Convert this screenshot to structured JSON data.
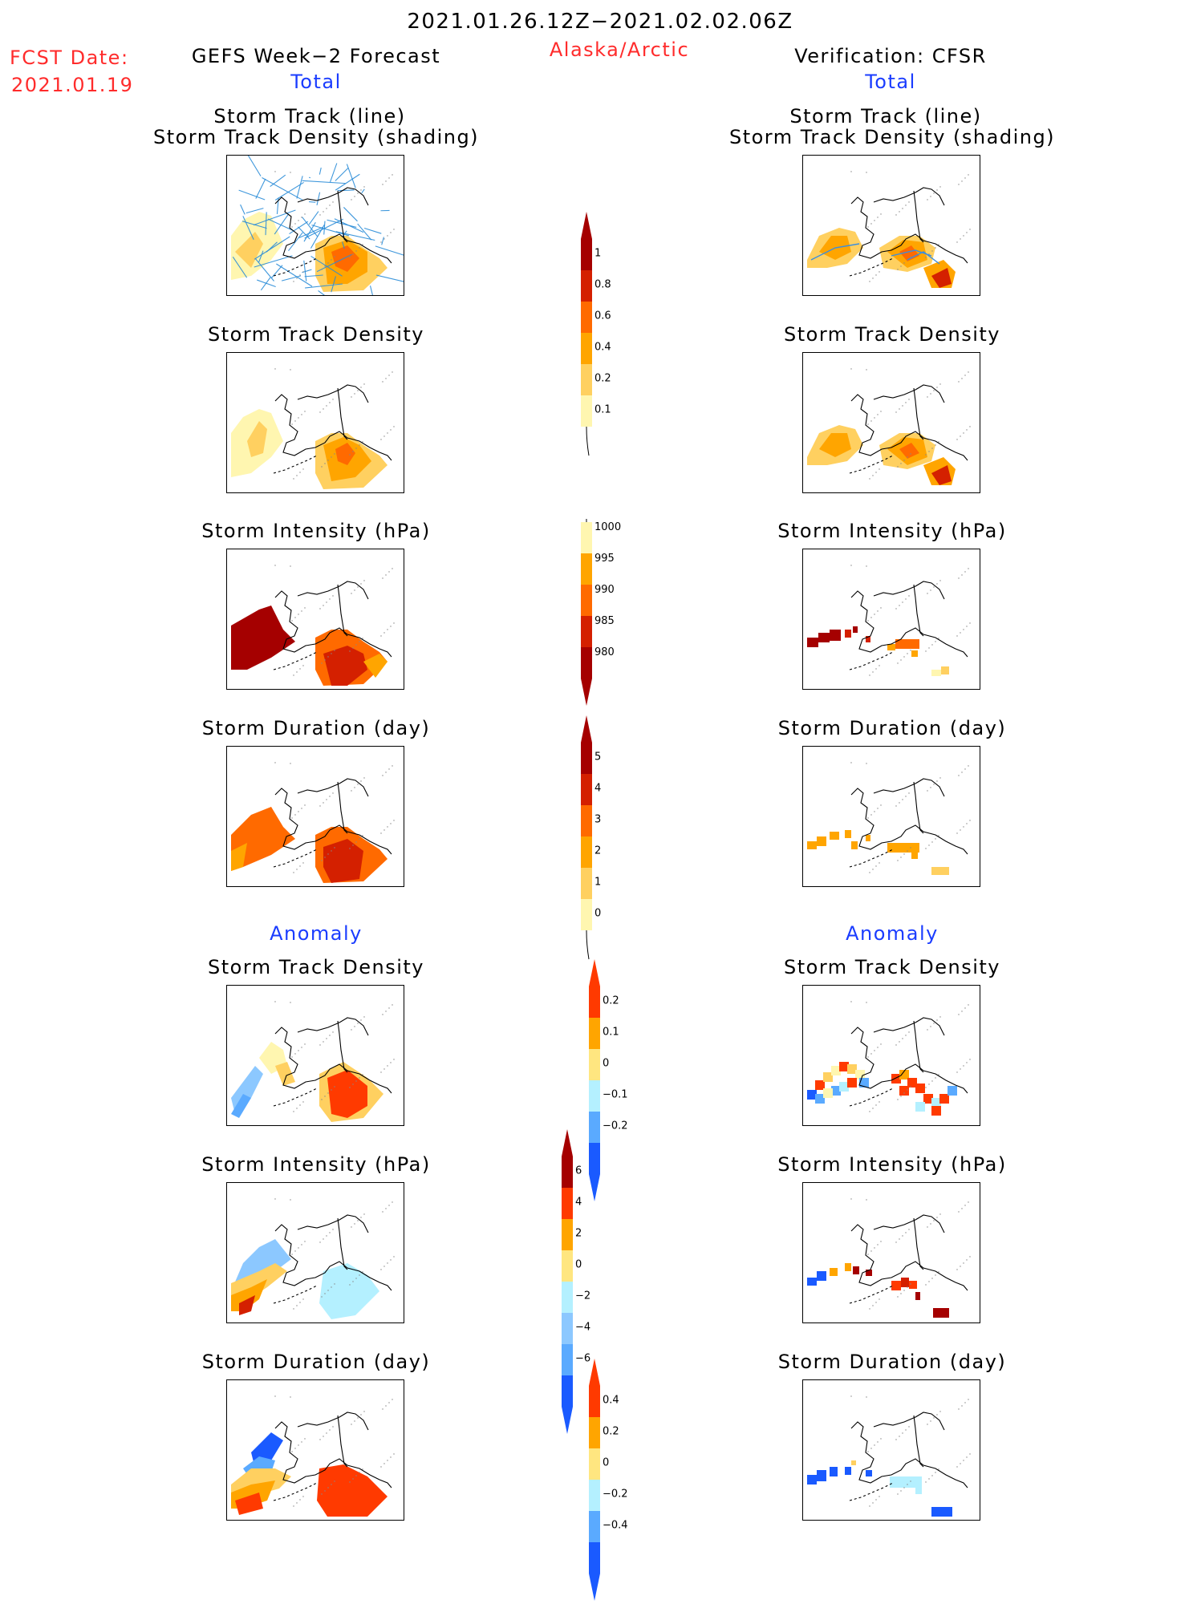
{
  "header": {
    "date_range": "2021.01.26.12Z−2021.02.02.06Z",
    "region": "Alaska/Arctic",
    "fcst_label": "FCST Date:",
    "fcst_date": "2021.01.19",
    "left_title": "GEFS Week−2 Forecast",
    "right_title": "Verification: CFSR",
    "total_label": "Total",
    "anomaly_label": "Anomaly"
  },
  "panel_titles": {
    "track_line": "Storm Track (line)",
    "track_density_shading": "Storm Track Density (shading)",
    "track_density": "Storm Track Density",
    "intensity": "Storm Intensity (hPa)",
    "duration": "Storm Duration (day)"
  },
  "colorbars": [
    {
      "name": "density-total",
      "labels": [
        "1",
        "0.8",
        "0.6",
        "0.4",
        "0.2",
        "0.1"
      ],
      "colors": [
        "#a50000",
        "#d42000",
        "#ff6a00",
        "#ffa500",
        "#ffd060",
        "#fff6b0"
      ]
    },
    {
      "name": "intensity-total",
      "labels": [
        "1000",
        "995",
        "990",
        "985",
        "980"
      ],
      "colors": [
        "#fff6b0",
        "#ffa500",
        "#ff6a00",
        "#d42000",
        "#a50000"
      ]
    },
    {
      "name": "duration-total",
      "labels": [
        "5",
        "4",
        "3",
        "2",
        "1",
        "0"
      ],
      "colors": [
        "#a50000",
        "#d42000",
        "#ff6a00",
        "#ffa500",
        "#ffd060",
        "#fff6b0"
      ]
    },
    {
      "name": "density-anomaly",
      "labels": [
        "0.2",
        "0.1",
        "0",
        "−0.1",
        "−0.2"
      ],
      "colors": [
        "#ff3a00",
        "#ffa500",
        "#ffe680",
        "#b4f0ff",
        "#5aaaff",
        "#1a5aff"
      ]
    },
    {
      "name": "intensity-anomaly",
      "labels": [
        "6",
        "4",
        "2",
        "0",
        "−2",
        "−4",
        "−6"
      ],
      "colors": [
        "#a50000",
        "#ff3a00",
        "#ffa500",
        "#ffe680",
        "#b4f0ff",
        "#8cc8ff",
        "#5aaaff",
        "#1a5aff"
      ]
    },
    {
      "name": "duration-anomaly",
      "labels": [
        "0.4",
        "0.2",
        "0",
        "−0.2",
        "−0.4"
      ],
      "colors": [
        "#ff3a00",
        "#ffa500",
        "#ffe680",
        "#b4f0ff",
        "#5aaaff",
        "#1a5aff"
      ]
    }
  ],
  "colors": {
    "accent_red": "#ff2b2b",
    "accent_blue": "#1a3cff"
  }
}
